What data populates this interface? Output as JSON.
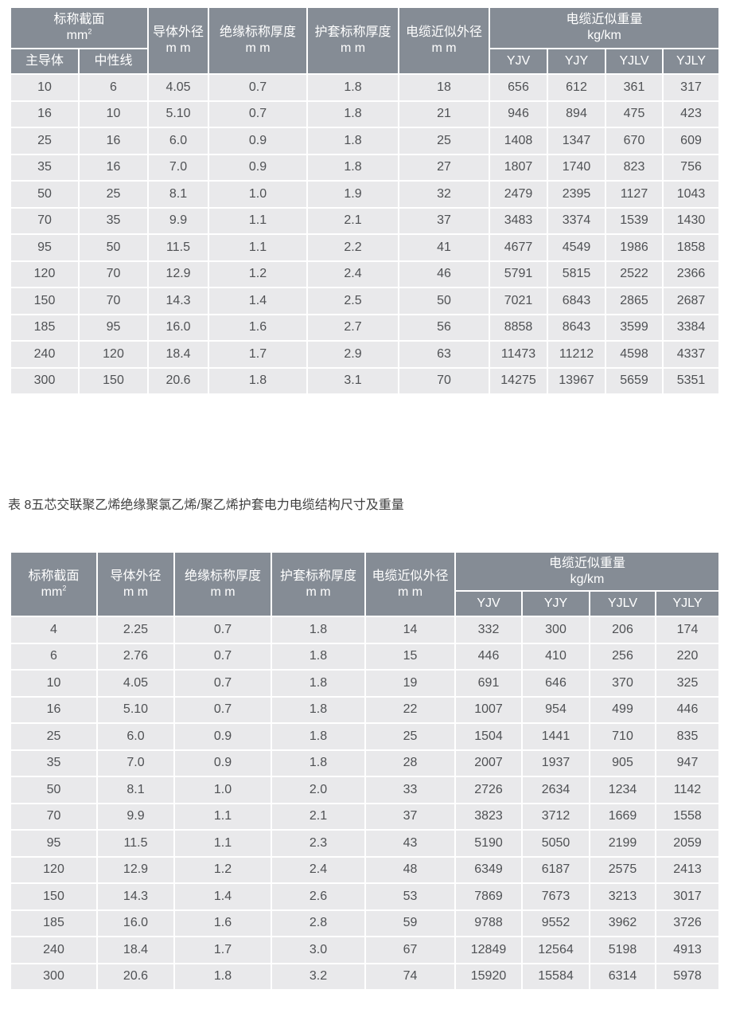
{
  "colors": {
    "header_bg": "#858C95",
    "row_bg": "#E9E9EB",
    "header_text": "#FFFFFF",
    "cell_text": "#4F5154",
    "divider": "#FFFFFF"
  },
  "caption": "表 8五芯交联聚乙烯绝缘聚氯乙烯/聚乙烯护套电力电缆结构尺寸及重量",
  "table1": {
    "header": {
      "section": {
        "title": "标称截面",
        "unit": "mm",
        "unit_sup": "2"
      },
      "sub_main_conductor": "主导体",
      "sub_neutral": "中性线",
      "conductor_od": {
        "title": "导体外径",
        "unit": "m m"
      },
      "insulation_thickness": {
        "title": "绝缘标称厚度",
        "unit": "m m"
      },
      "sheath_thickness": {
        "title": "护套标称厚度",
        "unit": "m m"
      },
      "cable_od": {
        "title": "电缆近似外径",
        "unit": "m m"
      },
      "weight": {
        "title": "电缆近似重量",
        "unit": "kg/km"
      },
      "weight_types": [
        "YJV",
        "YJY",
        "YJLV",
        "YJLY"
      ]
    },
    "rows": [
      [
        "10",
        "6",
        "4.05",
        "0.7",
        "1.8",
        "18",
        "656",
        "612",
        "361",
        "317"
      ],
      [
        "16",
        "10",
        "5.10",
        "0.7",
        "1.8",
        "21",
        "946",
        "894",
        "475",
        "423"
      ],
      [
        "25",
        "16",
        "6.0",
        "0.9",
        "1.8",
        "25",
        "1408",
        "1347",
        "670",
        "609"
      ],
      [
        "35",
        "16",
        "7.0",
        "0.9",
        "1.8",
        "27",
        "1807",
        "1740",
        "823",
        "756"
      ],
      [
        "50",
        "25",
        "8.1",
        "1.0",
        "1.9",
        "32",
        "2479",
        "2395",
        "1127",
        "1043"
      ],
      [
        "70",
        "35",
        "9.9",
        "1.1",
        "2.1",
        "37",
        "3483",
        "3374",
        "1539",
        "1430"
      ],
      [
        "95",
        "50",
        "11.5",
        "1.1",
        "2.2",
        "41",
        "4677",
        "4549",
        "1986",
        "1858"
      ],
      [
        "120",
        "70",
        "12.9",
        "1.2",
        "2.4",
        "46",
        "5791",
        "5815",
        "2522",
        "2366"
      ],
      [
        "150",
        "70",
        "14.3",
        "1.4",
        "2.5",
        "50",
        "7021",
        "6843",
        "2865",
        "2687"
      ],
      [
        "185",
        "95",
        "16.0",
        "1.6",
        "2.7",
        "56",
        "8858",
        "8643",
        "3599",
        "3384"
      ],
      [
        "240",
        "120",
        "18.4",
        "1.7",
        "2.9",
        "63",
        "11473",
        "11212",
        "4598",
        "4337"
      ],
      [
        "300",
        "150",
        "20.6",
        "1.8",
        "3.1",
        "70",
        "14275",
        "13967",
        "5659",
        "5351"
      ]
    ]
  },
  "table2": {
    "header": {
      "section": {
        "title": "标称截面",
        "unit": "mm",
        "unit_sup": "2"
      },
      "conductor_od": {
        "title": "导体外径",
        "unit": "m m"
      },
      "insulation_thickness": {
        "title": "绝缘标称厚度",
        "unit": "m m"
      },
      "sheath_thickness": {
        "title": "护套标称厚度",
        "unit": "m m"
      },
      "cable_od": {
        "title": "电缆近似外径",
        "unit": "m m"
      },
      "weight": {
        "title": "电缆近似重量",
        "unit": "kg/km"
      },
      "weight_types": [
        "YJV",
        "YJY",
        "YJLV",
        "YJLY"
      ]
    },
    "rows": [
      [
        "4",
        "2.25",
        "0.7",
        "1.8",
        "14",
        "332",
        "300",
        "206",
        "174"
      ],
      [
        "6",
        "2.76",
        "0.7",
        "1.8",
        "15",
        "446",
        "410",
        "256",
        "220"
      ],
      [
        "10",
        "4.05",
        "0.7",
        "1.8",
        "19",
        "691",
        "646",
        "370",
        "325"
      ],
      [
        "16",
        "5.10",
        "0.7",
        "1.8",
        "22",
        "1007",
        "954",
        "499",
        "446"
      ],
      [
        "25",
        "6.0",
        "0.9",
        "1.8",
        "25",
        "1504",
        "1441",
        "710",
        "835"
      ],
      [
        "35",
        "7.0",
        "0.9",
        "1.8",
        "28",
        "2007",
        "1937",
        "905",
        "947"
      ],
      [
        "50",
        "8.1",
        "1.0",
        "2.0",
        "33",
        "2726",
        "2634",
        "1234",
        "1142"
      ],
      [
        "70",
        "9.9",
        "1.1",
        "2.1",
        "37",
        "3823",
        "3712",
        "1669",
        "1558"
      ],
      [
        "95",
        "11.5",
        "1.1",
        "2.3",
        "43",
        "5190",
        "5050",
        "2199",
        "2059"
      ],
      [
        "120",
        "12.9",
        "1.2",
        "2.4",
        "48",
        "6349",
        "6187",
        "2575",
        "2413"
      ],
      [
        "150",
        "14.3",
        "1.4",
        "2.6",
        "53",
        "7869",
        "7673",
        "3213",
        "3017"
      ],
      [
        "185",
        "16.0",
        "1.6",
        "2.8",
        "59",
        "9788",
        "9552",
        "3962",
        "3726"
      ],
      [
        "240",
        "18.4",
        "1.7",
        "3.0",
        "67",
        "12849",
        "12564",
        "5198",
        "4913"
      ],
      [
        "300",
        "20.6",
        "1.8",
        "3.2",
        "74",
        "15920",
        "15584",
        "6314",
        "5978"
      ]
    ]
  }
}
